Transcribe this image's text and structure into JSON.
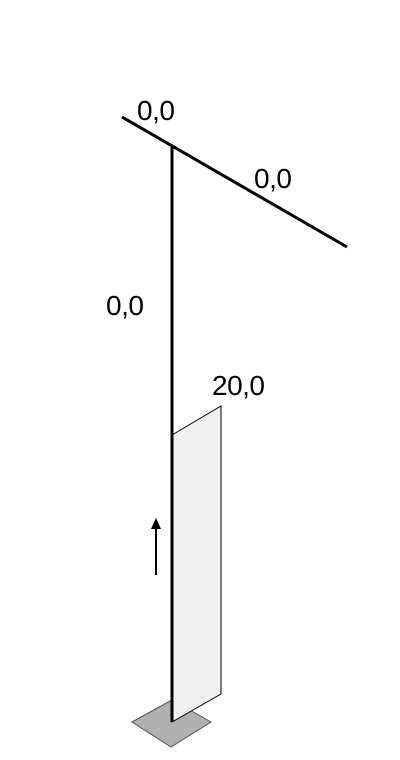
{
  "labels": {
    "top_left_value": "0,0",
    "beam_right_value": "0,0",
    "column_value": "0,0",
    "load_value": "20,0"
  },
  "colors": {
    "member": "#000000",
    "load_fill": "#f0f0f0",
    "load_stroke": "#000000",
    "support_fill": "#b0b0b0",
    "support_stroke": "#555555"
  },
  "icons": {
    "load_direction": "arrow-up-icon",
    "support": "fixed-support-icon"
  }
}
